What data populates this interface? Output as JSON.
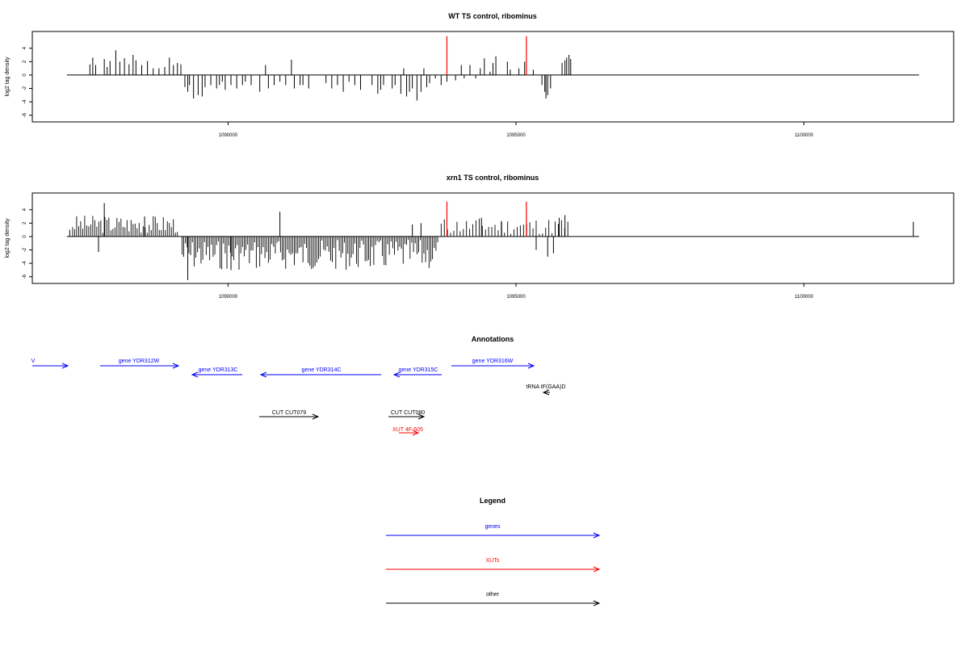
{
  "chart_data": [
    {
      "type": "bar",
      "title": "WT TS control, ribominus",
      "ylabel": "log2 tag density",
      "xlabel": "",
      "xlim": [
        1086600,
        1102600
      ],
      "ylim": [
        -7,
        6.5
      ],
      "x_ticks": [
        1090000,
        1095000,
        1100000
      ],
      "x_tick_labels": [
        "1090000",
        "1095000",
        "1100000"
      ],
      "y_ticks": [
        -6,
        -4,
        -2,
        0,
        2,
        4
      ],
      "y_tick_labels": [
        "-6",
        "-4",
        "-2",
        "0",
        "2",
        "4"
      ],
      "baseline": {
        "from": 1087200,
        "to": 1102000
      },
      "series": [
        {
          "color": "#000000",
          "points": [
            [
              1087600,
              1.6
            ],
            [
              1087650,
              2.6
            ],
            [
              1087700,
              1.5
            ],
            [
              1087850,
              2.4
            ],
            [
              1087900,
              1.2
            ],
            [
              1087950,
              2.1
            ],
            [
              1088050,
              3.7
            ],
            [
              1088120,
              2.0
            ],
            [
              1088200,
              2.5
            ],
            [
              1088280,
              1.6
            ],
            [
              1088350,
              3.0
            ],
            [
              1088400,
              2.2
            ],
            [
              1088500,
              1.5
            ],
            [
              1088600,
              2.1
            ],
            [
              1088700,
              1.0
            ],
            [
              1088800,
              1.0
            ],
            [
              1088900,
              1.2
            ],
            [
              1088980,
              2.6
            ],
            [
              1089050,
              1.5
            ],
            [
              1089120,
              1.8
            ],
            [
              1089180,
              1.6
            ],
            [
              1089250,
              -1.8
            ],
            [
              1089300,
              -2.5
            ],
            [
              1089330,
              -1.5
            ],
            [
              1089400,
              -3.5
            ],
            [
              1089480,
              -3.0
            ],
            [
              1089550,
              -3.2
            ],
            [
              1089600,
              -1.8
            ],
            [
              1089700,
              -1.5
            ],
            [
              1089800,
              -2.0
            ],
            [
              1089850,
              -1.5
            ],
            [
              1089900,
              -1.0
            ],
            [
              1089950,
              -2.2
            ],
            [
              1090050,
              -1.5
            ],
            [
              1090150,
              -2.0
            ],
            [
              1090250,
              -1.5
            ],
            [
              1090300,
              -1.0
            ],
            [
              1090400,
              -1.5
            ],
            [
              1090550,
              -2.5
            ],
            [
              1090650,
              1.5
            ],
            [
              1090700,
              -2.0
            ],
            [
              1090800,
              -1.5
            ],
            [
              1090900,
              -1.0
            ],
            [
              1091000,
              -1.5
            ],
            [
              1091100,
              2.3
            ],
            [
              1091150,
              -2.0
            ],
            [
              1091250,
              -1.5
            ],
            [
              1091300,
              -1.5
            ],
            [
              1091400,
              -2.0
            ],
            [
              1091700,
              -1.2
            ],
            [
              1091800,
              -2.0
            ],
            [
              1091900,
              -1.5
            ],
            [
              1092000,
              -2.5
            ],
            [
              1092100,
              -1.0
            ],
            [
              1092200,
              -1.5
            ],
            [
              1092300,
              -2.2
            ],
            [
              1092500,
              -1.5
            ],
            [
              1092600,
              -2.8
            ],
            [
              1092650,
              -2.2
            ],
            [
              1092700,
              -1.5
            ],
            [
              1092850,
              -2.0
            ],
            [
              1092900,
              -1.5
            ],
            [
              1093000,
              -2.8
            ],
            [
              1093050,
              1.0
            ],
            [
              1093100,
              -3.2
            ],
            [
              1093150,
              -2.5
            ],
            [
              1093200,
              -2.0
            ],
            [
              1093280,
              -3.8
            ],
            [
              1093350,
              -2.5
            ],
            [
              1093400,
              1.0
            ],
            [
              1093450,
              -1.8
            ],
            [
              1093500,
              -1.2
            ],
            [
              1093600,
              -0.5
            ],
            [
              1093700,
              -1.5
            ],
            [
              1093800,
              -1.0
            ],
            [
              1093950,
              -0.8
            ],
            [
              1094050,
              1.5
            ],
            [
              1094100,
              -0.5
            ],
            [
              1094200,
              1.5
            ],
            [
              1094300,
              -0.5
            ],
            [
              1094380,
              1.0
            ],
            [
              1094450,
              2.5
            ],
            [
              1094550,
              0.5
            ],
            [
              1094600,
              1.8
            ],
            [
              1094650,
              2.8
            ],
            [
              1094850,
              2.0
            ],
            [
              1094900,
              0.8
            ],
            [
              1095050,
              1.0
            ],
            [
              1095150,
              2.0
            ],
            [
              1095300,
              0.8
            ],
            [
              1095450,
              -1.5
            ],
            [
              1095500,
              -2.5
            ],
            [
              1095520,
              -3.5
            ],
            [
              1095550,
              -3.0
            ],
            [
              1095600,
              -2.0
            ],
            [
              1095800,
              1.8
            ],
            [
              1095850,
              2.2
            ],
            [
              1095880,
              2.6
            ],
            [
              1095920,
              3.0
            ],
            [
              1095950,
              2.4
            ]
          ]
        },
        {
          "color": "#ff0000",
          "points": [
            [
              1093800,
              5.8
            ],
            [
              1095180,
              5.8
            ]
          ]
        }
      ]
    },
    {
      "type": "bar",
      "title": "xrn1 TS control, ribominus",
      "ylabel": "log2 tag density",
      "xlabel": "",
      "xlim": [
        1086600,
        1102600
      ],
      "ylim": [
        -7,
        6.5
      ],
      "x_ticks": [
        1090000,
        1095000,
        1100000
      ],
      "x_tick_labels": [
        "1090000",
        "1095000",
        "1100000"
      ],
      "y_ticks": [
        -6,
        -4,
        -2,
        0,
        2,
        4
      ],
      "y_tick_labels": [
        "-6",
        "-4",
        "-2",
        "0",
        "2",
        "4"
      ],
      "baseline": {
        "from": 1087200,
        "to": 1102000
      },
      "dense_ranges": [
        {
          "from": 1087300,
          "to": 1089150,
          "sign": 1,
          "min": 0.5,
          "max": 3.2,
          "step": 35,
          "seed": 3
        },
        {
          "from": 1089200,
          "to": 1093650,
          "sign": -1,
          "min": 0.5,
          "max": 5.0,
          "step": 30,
          "seed": 7
        },
        {
          "from": 1093700,
          "to": 1095900,
          "sign": 1,
          "min": 0.3,
          "max": 2.8,
          "step": 55,
          "seed": 11
        }
      ],
      "series": [
        {
          "color": "#000000",
          "points": [
            [
              1087250,
              1.0
            ],
            [
              1087750,
              -2.3
            ],
            [
              1087850,
              5.0
            ],
            [
              1088550,
              3.0
            ],
            [
              1089300,
              -6.5
            ],
            [
              1090050,
              -5.0
            ],
            [
              1090900,
              3.7
            ],
            [
              1093200,
              1.8
            ],
            [
              1093350,
              2.0
            ],
            [
              1094400,
              2.8
            ],
            [
              1094750,
              2.2
            ],
            [
              1095350,
              -2.0
            ],
            [
              1095550,
              -3.0
            ],
            [
              1095650,
              -2.5
            ],
            [
              1095750,
              2.8
            ],
            [
              1095850,
              3.2
            ],
            [
              1101900,
              2.2
            ]
          ]
        },
        {
          "color": "#ff0000",
          "points": [
            [
              1093800,
              5.2
            ],
            [
              1095180,
              5.2
            ]
          ]
        }
      ]
    }
  ],
  "annotations": {
    "title": "Annotations",
    "items": [
      {
        "label": "V",
        "color": "#0000ff",
        "dir": "right"
      },
      {
        "label": "gene YDR312W",
        "color": "#0000ff",
        "dir": "right"
      },
      {
        "label": "gene YDR313C",
        "color": "#0000ff",
        "dir": "left"
      },
      {
        "label": "gene YDR314C",
        "color": "#0000ff",
        "dir": "left"
      },
      {
        "label": "gene YDR315C",
        "color": "#0000ff",
        "dir": "left"
      },
      {
        "label": "gene YDR316W",
        "color": "#0000ff",
        "dir": "right"
      },
      {
        "label": "tRNA tF(GAA)D",
        "color": "#000000",
        "dir": "left"
      },
      {
        "label": "CUT CUT079",
        "color": "#000000",
        "dir": "right"
      },
      {
        "label": "CUT CUT080",
        "color": "#000000",
        "dir": "right"
      },
      {
        "label": "XUT 4F-505",
        "color": "#ff0000",
        "dir": "right"
      }
    ]
  },
  "legend": {
    "title": "Legend",
    "items": [
      {
        "label": "genes",
        "color": "#0000ff"
      },
      {
        "label": "XUTs",
        "color": "#ff0000"
      },
      {
        "label": "other",
        "color": "#000000"
      }
    ]
  }
}
